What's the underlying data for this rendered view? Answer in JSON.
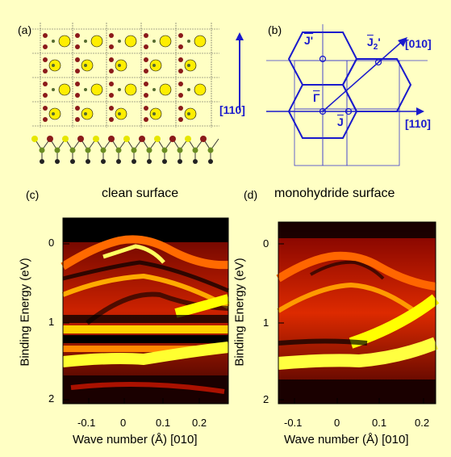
{
  "panels": {
    "a": {
      "label": "(a)",
      "direction_label": "[110]"
    },
    "b": {
      "label": "(b)",
      "labels": {
        "j_prime": "J'",
        "j2_prime": "J",
        "j2_sub": "2",
        "j2_prime_mark": "'",
        "gamma": "Γ",
        "j": "J",
        "dir_010": "[010]",
        "dir_110": "[110]"
      }
    },
    "c": {
      "label": "(c)",
      "title": "clean surface"
    },
    "d": {
      "label": "(d)",
      "title": "monohydride surface"
    }
  },
  "axes": {
    "ylabel": "Binding Energy (eV)",
    "xlabel": "Wave number (Å) [010]",
    "y_ticks": [
      "0",
      "1",
      "2"
    ],
    "x_ticks": [
      "-0.1",
      "0",
      "0.1",
      "0.2"
    ]
  },
  "colors": {
    "background": "#ffffc4",
    "blue": "#1a1acc",
    "map_dark": "#000000",
    "map_mid": "#cc1a00",
    "map_hot": "#ffff00"
  }
}
